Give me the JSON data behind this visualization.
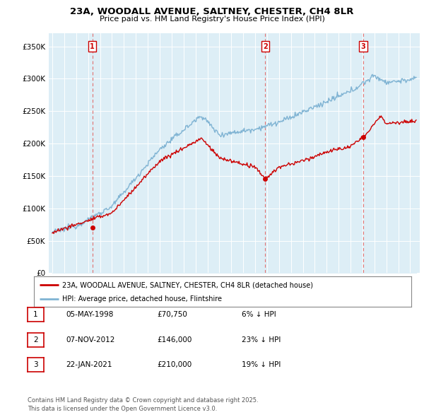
{
  "title1": "23A, WOODALL AVENUE, SALTNEY, CHESTER, CH4 8LR",
  "title2": "Price paid vs. HM Land Registry's House Price Index (HPI)",
  "ylabel_ticks": [
    "£0",
    "£50K",
    "£100K",
    "£150K",
    "£200K",
    "£250K",
    "£300K",
    "£350K"
  ],
  "ytick_vals": [
    0,
    50000,
    100000,
    150000,
    200000,
    250000,
    300000,
    350000
  ],
  "ylim": [
    0,
    370000
  ],
  "xlim_start": 1994.7,
  "xlim_end": 2025.8,
  "sale_dates": [
    1998.35,
    2012.85,
    2021.06
  ],
  "sale_prices": [
    70750,
    146000,
    210000
  ],
  "sale_labels": [
    "1",
    "2",
    "3"
  ],
  "legend_label_red": "23A, WOODALL AVENUE, SALTNEY, CHESTER, CH4 8LR (detached house)",
  "legend_label_blue": "HPI: Average price, detached house, Flintshire",
  "table_entries": [
    {
      "num": "1",
      "date": "05-MAY-1998",
      "price": "£70,750",
      "pct": "6% ↓ HPI"
    },
    {
      "num": "2",
      "date": "07-NOV-2012",
      "price": "£146,000",
      "pct": "23% ↓ HPI"
    },
    {
      "num": "3",
      "date": "22-JAN-2021",
      "price": "£210,000",
      "pct": "19% ↓ HPI"
    }
  ],
  "footer": "Contains HM Land Registry data © Crown copyright and database right 2025.\nThis data is licensed under the Open Government Licence v3.0.",
  "red_color": "#cc0000",
  "blue_color": "#7fb3d3",
  "blue_fill": "#ddeef6",
  "vline_color": "#e07070",
  "bg_color": "#ffffff",
  "grid_color": "#c8d8e8"
}
